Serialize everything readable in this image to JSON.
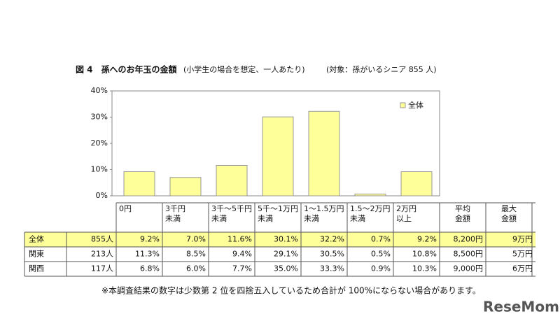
{
  "chart_data": {
    "type": "bar",
    "title": "図 4　孫へのお年玉の金額",
    "subtitle": "(小学生の場合を想定、一人あたり)",
    "target_note": "(対象：孫がいるシニア 855 人)",
    "categories": [
      [
        "0円"
      ],
      [
        "3千円",
        "未満"
      ],
      [
        "3千～5千円",
        "未満"
      ],
      [
        "5千～1万円",
        "未満"
      ],
      [
        "1～1.5万円",
        "未満"
      ],
      [
        "1.5～2万円",
        "未満"
      ],
      [
        "2万円",
        "以上"
      ]
    ],
    "extra_headers": [
      [
        "平均",
        "金額"
      ],
      [
        "最大",
        "金額"
      ]
    ],
    "series": [
      {
        "name": "全体",
        "color": "#ffff99",
        "count": "855人",
        "values": [
          9.2,
          7.0,
          11.6,
          30.1,
          32.2,
          0.7,
          9.2
        ],
        "value_labels": [
          "9.2%",
          "7.0%",
          "11.6%",
          "30.1%",
          "32.2%",
          "0.7%",
          "9.2%"
        ],
        "average": "8,200円",
        "max": "9万円"
      }
    ],
    "ylim": [
      0,
      40
    ],
    "yticks": [
      {
        "value": 0,
        "label": "0%"
      },
      {
        "value": 10,
        "label": "10%"
      },
      {
        "value": 20,
        "label": "20%"
      },
      {
        "value": 30,
        "label": "30%"
      },
      {
        "value": 40,
        "label": "40%"
      }
    ],
    "legend": "upper right",
    "table_rows": [
      {
        "name": "関東",
        "count": "213人",
        "cells": [
          "11.3%",
          "8.5%",
          "9.4%",
          "29.1%",
          "30.5%",
          "0.5%",
          "10.8%"
        ],
        "average": "8,500円",
        "max": "5万円"
      },
      {
        "name": "関西",
        "count": "117人",
        "cells": [
          "6.8%",
          "6.0%",
          "7.7%",
          "35.0%",
          "33.3%",
          "0.9%",
          "10.3%"
        ],
        "average": "9,000円",
        "max": "6万円"
      }
    ],
    "footnote": "※本調査結果の数字は少数第 2 位を四捨五入しているため合計が 100%にならない場合があります。",
    "logo": "ReseMom"
  }
}
